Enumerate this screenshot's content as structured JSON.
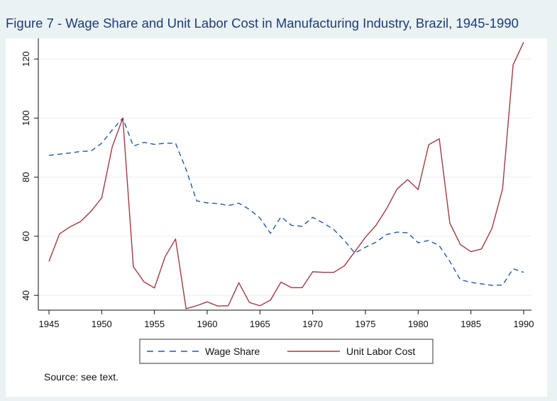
{
  "colors": {
    "background": "#eaf2f3",
    "plot_background": "#ffffff",
    "title": "#1d3c78",
    "wage_share": "#1f5aa6",
    "unit_labor_cost": "#a23a43",
    "grid": "#e9eef0"
  },
  "chart_data": {
    "type": "line",
    "title": "Figure 7 - Wage Share and Unit Labor Cost in Manufacturing Industry, Brazil, 1945-1990",
    "xlabel": "",
    "ylabel": "",
    "xlim": [
      1945,
      1990
    ],
    "ylim": [
      35,
      127
    ],
    "x_ticks": [
      "1945",
      "1950",
      "1955",
      "1960",
      "1965",
      "1970",
      "1975",
      "1980",
      "1985",
      "1990"
    ],
    "y_ticks": [
      "40",
      "60",
      "80",
      "100",
      "120"
    ],
    "grid": true,
    "legend_position": "bottom",
    "x": [
      1945,
      1946,
      1947,
      1948,
      1949,
      1950,
      1951,
      1952,
      1953,
      1954,
      1955,
      1956,
      1957,
      1958,
      1959,
      1960,
      1961,
      1962,
      1963,
      1964,
      1965,
      1966,
      1967,
      1968,
      1969,
      1970,
      1971,
      1972,
      1973,
      1974,
      1975,
      1976,
      1977,
      1978,
      1979,
      1980,
      1981,
      1982,
      1983,
      1984,
      1985,
      1986,
      1987,
      1988,
      1989,
      1990
    ],
    "series": [
      {
        "name": "Wage Share",
        "style": "dashed",
        "values": [
          87.4,
          87.8,
          88.2,
          88.7,
          88.9,
          91.5,
          96.0,
          100.0,
          90.5,
          91.8,
          91.1,
          91.5,
          91.5,
          82.6,
          72.0,
          71.3,
          71.1,
          70.4,
          71.2,
          69.1,
          66.2,
          61.0,
          66.6,
          63.7,
          63.4,
          66.4,
          64.5,
          62.3,
          58.6,
          54.3,
          56.3,
          58.0,
          60.6,
          61.4,
          61.2,
          57.8,
          58.6,
          56.8,
          51.5,
          45.3,
          44.4,
          43.9,
          43.4,
          43.5,
          49.0,
          47.8
        ]
      },
      {
        "name": "Unit Labor Cost",
        "style": "solid",
        "values": [
          51.5,
          60.8,
          63.2,
          65.0,
          68.5,
          73.0,
          90.3,
          100.0,
          49.7,
          44.6,
          42.5,
          53.0,
          59.1,
          35.5,
          36.5,
          37.8,
          36.4,
          36.5,
          44.3,
          37.6,
          36.5,
          38.4,
          44.5,
          42.6,
          42.6,
          48.0,
          47.8,
          47.8,
          50.0,
          54.8,
          59.7,
          63.7,
          69.3,
          76.0,
          79.2,
          75.8,
          91.0,
          93.0,
          64.5,
          57.2,
          54.8,
          55.7,
          62.7,
          76.0,
          118.0,
          125.7
        ]
      }
    ]
  },
  "source_note": "Source: see text."
}
